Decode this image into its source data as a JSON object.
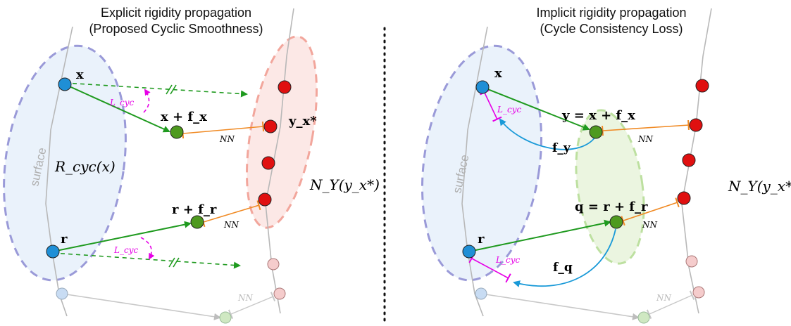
{
  "left_panel": {
    "title_line1": "Explicit rigidity propagation",
    "title_line2": "(Proposed Cyclic Smoothness)",
    "surface_label": "surface",
    "region_label": "R_cyc(x)",
    "neighborhood_label": "N_Y(y_x*)",
    "point_x": "x",
    "point_r": "r",
    "point_x_flow": "x + f_x",
    "point_r_flow": "r + f_r",
    "target_label": "y_x*",
    "nn_labels": [
      "NN",
      "NN",
      "NN"
    ],
    "loss_labels": [
      "L_cyc",
      "L_cyc"
    ]
  },
  "right_panel": {
    "title_line1": "Implicit rigidity propagation",
    "title_line2": "(Cycle Consistency Loss)",
    "surface_label": "surface",
    "neighborhood_label": "N_Y(y_x*)",
    "point_x": "x",
    "point_r": "r",
    "point_y": "y = x + f_x",
    "point_q": "q = r + f_r",
    "flow_y": "f_y",
    "flow_q": "f_q",
    "nn_labels": [
      "NN",
      "NN",
      "NN"
    ],
    "loss_labels": [
      "L_cyc",
      "L_cyc"
    ]
  },
  "colors": {
    "blue_point": "#1f8fd6",
    "green_point": "#4e9a1f",
    "red_point": "#e01010",
    "arrow_green": "#1f9a1f",
    "nn_orange": "#f08a24",
    "loss_magenta": "#e600e6",
    "flow_cyan": "#1a9ad8"
  }
}
